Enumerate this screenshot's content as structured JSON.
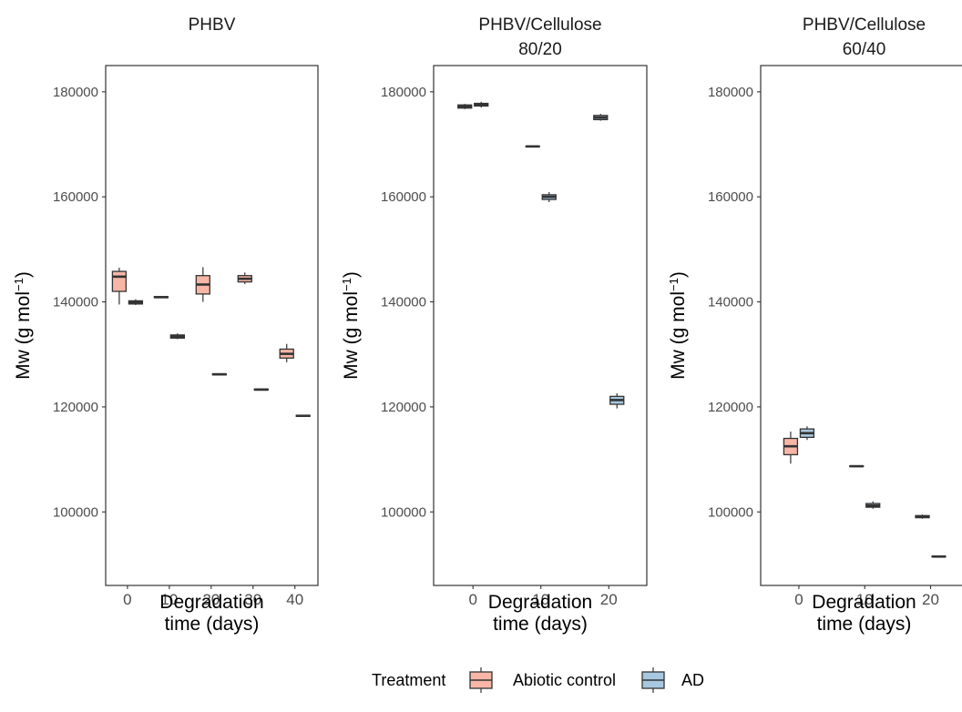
{
  "chart_data": {
    "type": "box",
    "legend": {
      "title": "Treatment",
      "position": "bottom",
      "entries": [
        {
          "key": "abiotic",
          "label": "Abiotic control",
          "color": "#F8B6A6"
        },
        {
          "key": "ad",
          "label": "AD",
          "color": "#A8C8E0"
        }
      ]
    },
    "y_ticks": [
      "100000",
      "120000",
      "140000",
      "160000",
      "180000"
    ],
    "panels": [
      {
        "title": [
          "PHBV"
        ],
        "xlabel": [
          "Degradation",
          "time (days)"
        ],
        "ylabel": "Mw (g mol",
        "ylabel_sup": "−1",
        "x_ticks": [
          "0",
          "10",
          "20",
          "30",
          "40"
        ],
        "x_tick_values": [
          0,
          10,
          20,
          30,
          40
        ],
        "xlim": [
          -5.2,
          45.5
        ],
        "ylim": [
          86000,
          185000
        ],
        "boxes": [
          {
            "time": 0,
            "group": "abiotic",
            "min": 139500,
            "q1": 142000,
            "median": 144800,
            "q3": 145800,
            "max": 146500
          },
          {
            "time": 0,
            "group": "ad",
            "min": 139400,
            "q1": 139600,
            "median": 139900,
            "q3": 140200,
            "max": 140500
          },
          {
            "time": 10,
            "group": "ad",
            "min": 140700,
            "q1": 140800,
            "median": 140900,
            "q3": 141000,
            "max": 141100
          },
          {
            "time": 10,
            "group": "ad",
            "min": 132900,
            "q1": 133100,
            "median": 133400,
            "q3": 133700,
            "max": 134000
          },
          {
            "time": 20,
            "group": "abiotic",
            "min": 140000,
            "q1": 141500,
            "median": 143300,
            "q3": 145000,
            "max": 146600
          },
          {
            "time": 20,
            "group": "ad",
            "min": 126000,
            "q1": 126100,
            "median": 126200,
            "q3": 126300,
            "max": 126400
          },
          {
            "time": 30,
            "group": "abiotic",
            "min": 143400,
            "q1": 143800,
            "median": 144400,
            "q3": 145000,
            "max": 145600
          },
          {
            "time": 30,
            "group": "ad",
            "min": 123100,
            "q1": 123200,
            "median": 123300,
            "q3": 123400,
            "max": 123500
          },
          {
            "time": 40,
            "group": "abiotic",
            "min": 128500,
            "q1": 129300,
            "median": 130100,
            "q3": 131000,
            "max": 132000
          },
          {
            "time": 40,
            "group": "ad",
            "min": 118100,
            "q1": 118200,
            "median": 118300,
            "q3": 118400,
            "max": 118500
          }
        ]
      },
      {
        "title": [
          "PHBV/Cellulose",
          "80/20"
        ],
        "xlabel": [
          "Degradation",
          "time (days)"
        ],
        "ylabel": "Mw (g mol",
        "ylabel_sup": "−1",
        "x_ticks": [
          "0",
          "10",
          "20"
        ],
        "x_tick_values": [
          0,
          10,
          20
        ],
        "xlim": [
          -5.8,
          25.6
        ],
        "ylim": [
          86000,
          185000
        ],
        "boxes": [
          {
            "time": 0,
            "group": "ad",
            "min": 176700,
            "q1": 176900,
            "median": 177200,
            "q3": 177500,
            "max": 177700
          },
          {
            "time": 0,
            "group": "ad",
            "min": 177000,
            "q1": 177300,
            "median": 177600,
            "q3": 177800,
            "max": 178100
          },
          {
            "time": 10,
            "group": "ad",
            "min": 169500,
            "q1": 169550,
            "median": 169600,
            "q3": 169650,
            "max": 169700
          },
          {
            "time": 10,
            "group": "ad",
            "min": 159000,
            "q1": 159500,
            "median": 160000,
            "q3": 160400,
            "max": 160900
          },
          {
            "time": 20,
            "group": "ad",
            "min": 174500,
            "q1": 174700,
            "median": 175100,
            "q3": 175500,
            "max": 175800
          },
          {
            "time": 20,
            "group": "ad",
            "min": 119700,
            "q1": 120500,
            "median": 121300,
            "q3": 122000,
            "max": 122600
          }
        ]
      },
      {
        "title": [
          "PHBV/Cellulose",
          "60/40"
        ],
        "xlabel": [
          "Degradation",
          "time (days)"
        ],
        "ylabel": "Mw (g mol",
        "ylabel_sup": "−1",
        "x_ticks": [
          "0",
          "10",
          "20"
        ],
        "x_tick_values": [
          0,
          10,
          20
        ],
        "xlim": [
          -5.8,
          25.6
        ],
        "ylim": [
          86000,
          185000
        ],
        "boxes": [
          {
            "time": 0,
            "group": "abiotic",
            "min": 109200,
            "q1": 110900,
            "median": 112500,
            "q3": 114000,
            "max": 115300
          },
          {
            "time": 0,
            "group": "ad",
            "min": 113700,
            "q1": 114200,
            "median": 115000,
            "q3": 115800,
            "max": 116300
          },
          {
            "time": 10,
            "group": "ad",
            "min": 108600,
            "q1": 108650,
            "median": 108700,
            "q3": 108750,
            "max": 108800
          },
          {
            "time": 10,
            "group": "ad",
            "min": 100600,
            "q1": 100900,
            "median": 101200,
            "q3": 101600,
            "max": 102000
          },
          {
            "time": 20,
            "group": "ad",
            "min": 98700,
            "q1": 98900,
            "median": 99100,
            "q3": 99300,
            "max": 99500
          },
          {
            "time": 20,
            "group": "ad",
            "min": 91400,
            "q1": 91450,
            "median": 91500,
            "q3": 91550,
            "max": 91600
          }
        ]
      }
    ]
  }
}
